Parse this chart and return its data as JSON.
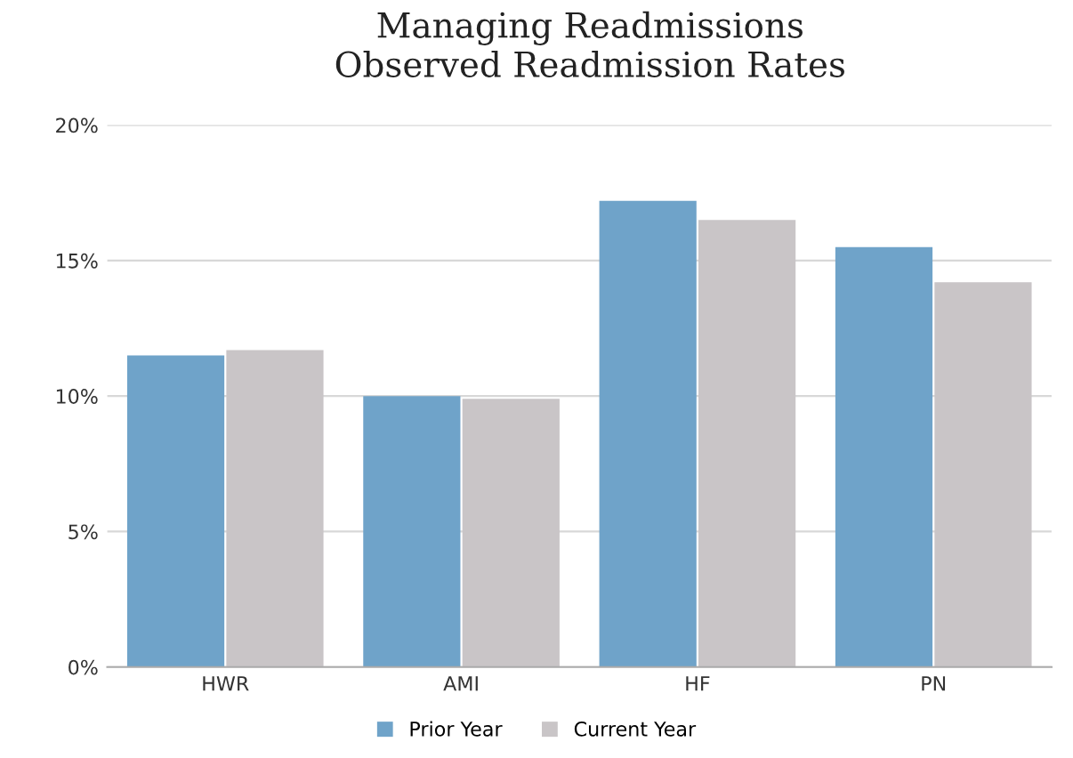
{
  "chart_data": {
    "type": "bar",
    "title": "Managing Readmissions\nObserved Readmission Rates",
    "categories": [
      "HWR",
      "AMI",
      "HF",
      "PN"
    ],
    "series": [
      {
        "name": "Prior Year",
        "color": "#6fa3c9",
        "values": [
          11.5,
          10.0,
          17.2,
          15.5
        ]
      },
      {
        "name": "Current Year",
        "color": "#c9c5c7",
        "values": [
          11.7,
          9.9,
          16.5,
          14.2
        ]
      }
    ],
    "ylim": [
      0,
      20
    ],
    "yticks": [
      {
        "value": 0,
        "label": "0%"
      },
      {
        "value": 5,
        "label": "5%"
      },
      {
        "value": 10,
        "label": "10%"
      },
      {
        "value": 15,
        "label": "15%"
      },
      {
        "value": 20,
        "label": "20%"
      }
    ],
    "grid": "y",
    "legend": "bottom"
  }
}
